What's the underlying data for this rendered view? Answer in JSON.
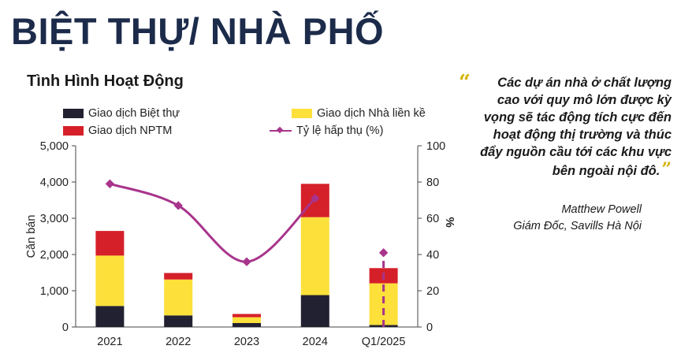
{
  "header": {
    "title": "BIỆT THỰ/ NHÀ PHỐ"
  },
  "chart_data": {
    "type": "bar",
    "title": "Tình Hình Hoạt Động",
    "stacked": true,
    "categories": [
      "2021",
      "2022",
      "2023",
      "2024",
      "Q1/2025"
    ],
    "series": [
      {
        "name": "Giao dịch Biệt thự",
        "type": "bar",
        "axis": "left",
        "color": "#222131",
        "values": [
          580,
          320,
          110,
          880,
          55
        ]
      },
      {
        "name": "Giao dịch Nhà liền kề",
        "type": "bar",
        "axis": "left",
        "color": "#fde03a",
        "values": [
          1390,
          990,
          160,
          2150,
          1150
        ]
      },
      {
        "name": "Giao dịch NPTM",
        "type": "bar",
        "axis": "left",
        "color": "#d5202a",
        "values": [
          680,
          180,
          90,
          920,
          420
        ]
      },
      {
        "name": "Tỷ lệ hấp thụ (%)",
        "type": "line",
        "axis": "right",
        "color": "#a8348c",
        "values": [
          79,
          67,
          36,
          71,
          41
        ]
      }
    ],
    "ylabel": "Căn bán",
    "y2label": "%",
    "ylim": [
      0,
      5000
    ],
    "y2lim": [
      0,
      100
    ],
    "yticks": [
      "0",
      "1,000",
      "2,000",
      "3,000",
      "4,000",
      "5,000"
    ],
    "y2ticks": [
      "0",
      "20",
      "40",
      "60",
      "80",
      "100"
    ],
    "grid": false,
    "legend_position": "top"
  },
  "quote": {
    "text": "Các dự án nhà ở chất lượng cao với quy mô lớn được kỳ vọng sẽ tác động tích cực đến hoạt động thị trường và thúc đẩy nguồn cầu tới các khu vực bên ngoài nội đô.",
    "author": "Matthew Powell",
    "role": "Giám Đốc,  Savills  Hà Nội",
    "accent_color": "#d4b300"
  }
}
